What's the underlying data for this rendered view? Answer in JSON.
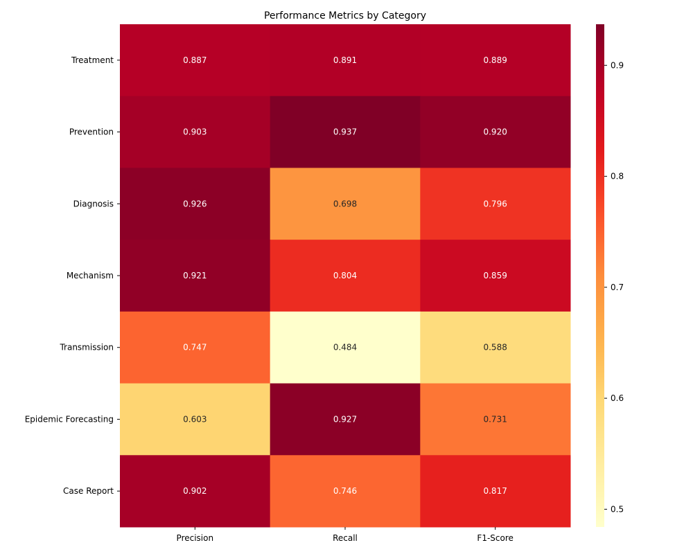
{
  "chart_data": {
    "type": "heatmap",
    "title": "Performance Metrics by Category",
    "xlabel": "",
    "ylabel": "",
    "columns": [
      "Precision",
      "Recall",
      "F1-Score"
    ],
    "rows": [
      "Treatment",
      "Prevention",
      "Diagnosis",
      "Mechanism",
      "Transmission",
      "Epidemic Forecasting",
      "Case Report"
    ],
    "values": [
      [
        0.887,
        0.891,
        0.889
      ],
      [
        0.903,
        0.937,
        0.92
      ],
      [
        0.926,
        0.698,
        0.796
      ],
      [
        0.921,
        0.804,
        0.859
      ],
      [
        0.747,
        0.484,
        0.588
      ],
      [
        0.603,
        0.927,
        0.731
      ],
      [
        0.902,
        0.746,
        0.817
      ]
    ],
    "value_labels": [
      [
        "0.887",
        "0.891",
        "0.889"
      ],
      [
        "0.903",
        "0.937",
        "0.920"
      ],
      [
        "0.926",
        "0.698",
        "0.796"
      ],
      [
        "0.921",
        "0.804",
        "0.859"
      ],
      [
        "0.747",
        "0.484",
        "0.588"
      ],
      [
        "0.603",
        "0.927",
        "0.731"
      ],
      [
        "0.902",
        "0.746",
        "0.817"
      ]
    ],
    "colormap": "YlOrRd",
    "vmin": 0.484,
    "vmax": 0.937,
    "colorbar_ticks": [
      0.5,
      0.6,
      0.7,
      0.8,
      0.9
    ],
    "colorbar_tick_labels": [
      "0.5",
      "0.6",
      "0.7",
      "0.8",
      "0.9"
    ]
  }
}
